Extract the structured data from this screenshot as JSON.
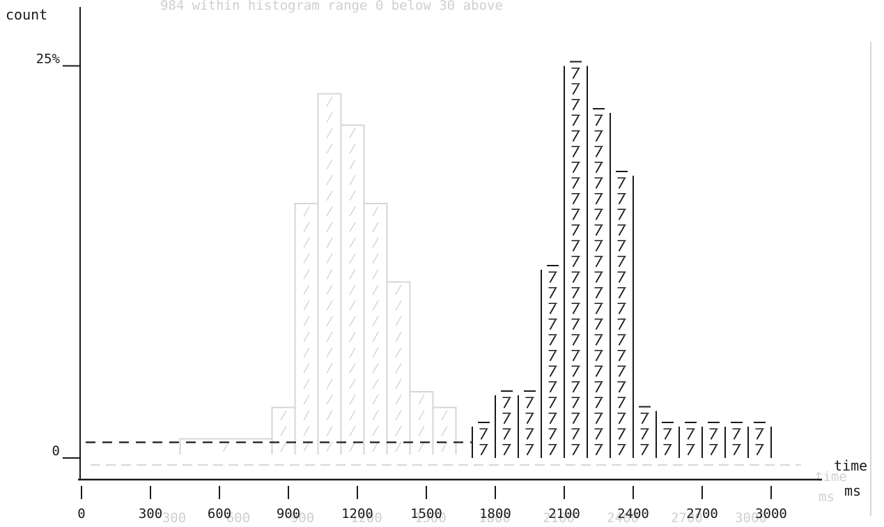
{
  "chart_data": {
    "type": "bar",
    "title": "",
    "ylabel": "count",
    "xlabel": "time",
    "xunit": "ms",
    "ylim": [
      0,
      26
    ],
    "ytick_labels": [
      {
        "label": "25%",
        "value": 25
      },
      {
        "label": "0",
        "value": 0
      }
    ],
    "xticks": [
      0,
      300,
      600,
      900,
      1200,
      1500,
      1800,
      2100,
      2400,
      2700,
      3000
    ],
    "bin_width": 100,
    "bars": [
      {
        "x0": 0,
        "x1": 1700,
        "value": 1,
        "style": "dashed"
      },
      {
        "x0": 1700,
        "x1": 1800,
        "value": 2
      },
      {
        "x0": 1800,
        "x1": 1900,
        "value": 4
      },
      {
        "x0": 1900,
        "x1": 2000,
        "value": 4
      },
      {
        "x0": 2000,
        "x1": 2100,
        "value": 12
      },
      {
        "x0": 2100,
        "x1": 2200,
        "value": 25
      },
      {
        "x0": 2200,
        "x1": 2300,
        "value": 22
      },
      {
        "x0": 2300,
        "x1": 2400,
        "value": 18
      },
      {
        "x0": 2400,
        "x1": 2500,
        "value": 3
      },
      {
        "x0": 2500,
        "x1": 2600,
        "value": 2
      },
      {
        "x0": 2600,
        "x1": 2700,
        "value": 2
      },
      {
        "x0": 2700,
        "x1": 2800,
        "value": 2
      },
      {
        "x0": 2800,
        "x1": 2900,
        "value": 2
      },
      {
        "x0": 2900,
        "x1": 3000,
        "value": 2
      }
    ],
    "bar_colors": {
      "ink": "#1a1a1a",
      "ghost": "#d6d6d6",
      "background": "#ffffff"
    },
    "show_through": {
      "header_text": "984 within histogram range   0 below   30 above",
      "side_labels": [
        "time",
        "ms"
      ],
      "tick_labels": [
        "300",
        "600",
        "900",
        "1200",
        "1500",
        "1800",
        "2100",
        "2400",
        "2700",
        "3000"
      ],
      "bars": [
        {
          "x0": 1050,
          "x1": 1150,
          "value": 16
        },
        {
          "x0": 1150,
          "x1": 1250,
          "value": 23
        },
        {
          "x0": 1250,
          "x1": 1350,
          "value": 21
        },
        {
          "x0": 1350,
          "x1": 1450,
          "value": 16
        },
        {
          "x0": 1450,
          "x1": 1550,
          "value": 11
        },
        {
          "x0": 1550,
          "x1": 1650,
          "value": 4
        },
        {
          "x0": 950,
          "x1": 1050,
          "value": 3
        },
        {
          "x0": 1650,
          "x1": 1750,
          "value": 3
        },
        {
          "x0": 550,
          "x1": 950,
          "value": 1
        }
      ]
    }
  }
}
